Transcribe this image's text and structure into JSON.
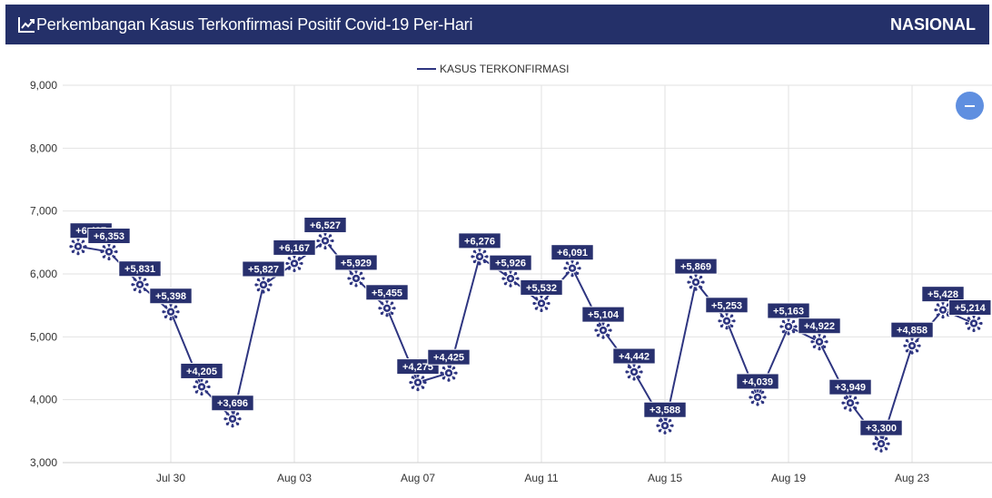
{
  "header": {
    "title": "Perkembangan Kasus Terkonfirmasi Positif Covid-19 Per-Hari",
    "region": "NASIONAL",
    "icon": "trend-line-icon"
  },
  "controls": {
    "collapse_icon": "minus-icon",
    "accent": "#5f8fe0"
  },
  "colors": {
    "header_bg": "#243069",
    "series": "#2e3580",
    "grid": "#e2e2e2"
  },
  "chart_data": {
    "type": "line",
    "title": "",
    "xlabel": "",
    "ylabel": "",
    "ylim": [
      3000,
      9000
    ],
    "yticks": [
      "3,000",
      "4,000",
      "5,000",
      "6,000",
      "7,000",
      "8,000",
      "9,000"
    ],
    "xtick_labels": [
      "Jul 30",
      "Aug 03",
      "Aug 07",
      "Aug 11",
      "Aug 15",
      "Aug 19",
      "Aug 23"
    ],
    "grid": true,
    "legend_position": "top-center",
    "x": [
      "Jul 27",
      "Jul 28",
      "Jul 29",
      "Jul 30",
      "Jul 31",
      "Aug 01",
      "Aug 02",
      "Aug 03",
      "Aug 04",
      "Aug 05",
      "Aug 06",
      "Aug 07",
      "Aug 08",
      "Aug 09",
      "Aug 10",
      "Aug 11",
      "Aug 12",
      "Aug 13",
      "Aug 14",
      "Aug 15",
      "Aug 16",
      "Aug 17",
      "Aug 18",
      "Aug 19",
      "Aug 20",
      "Aug 21",
      "Aug 22",
      "Aug 23",
      "Aug 24",
      "Aug 25"
    ],
    "series": [
      {
        "name": "KASUS TERKONFIRMASI",
        "values": [
          6437,
          6353,
          5831,
          5398,
          4205,
          3696,
          5827,
          6167,
          6527,
          5929,
          5455,
          4275,
          4425,
          6276,
          5926,
          5532,
          6091,
          5104,
          4442,
          3588,
          5869,
          5253,
          4039,
          5163,
          4922,
          3949,
          3300,
          4858,
          5428,
          5214
        ],
        "labels": [
          "+6,437",
          "+6,353",
          "+5,831",
          "+5,398",
          "+4,205",
          "+3,696",
          "+5,827",
          "+6,167",
          "+6,527",
          "+5,929",
          "+5,455",
          "+4,275",
          "+4,425",
          "+6,276",
          "+5,926",
          "+5,532",
          "+6,091",
          "+5,104",
          "+4,442",
          "+3,588",
          "+5,869",
          "+5,253",
          "+4,039",
          "+5,163",
          "+4,922",
          "+3,949",
          "+3,300",
          "+4,858",
          "+5,428",
          "+5,214"
        ]
      }
    ]
  }
}
